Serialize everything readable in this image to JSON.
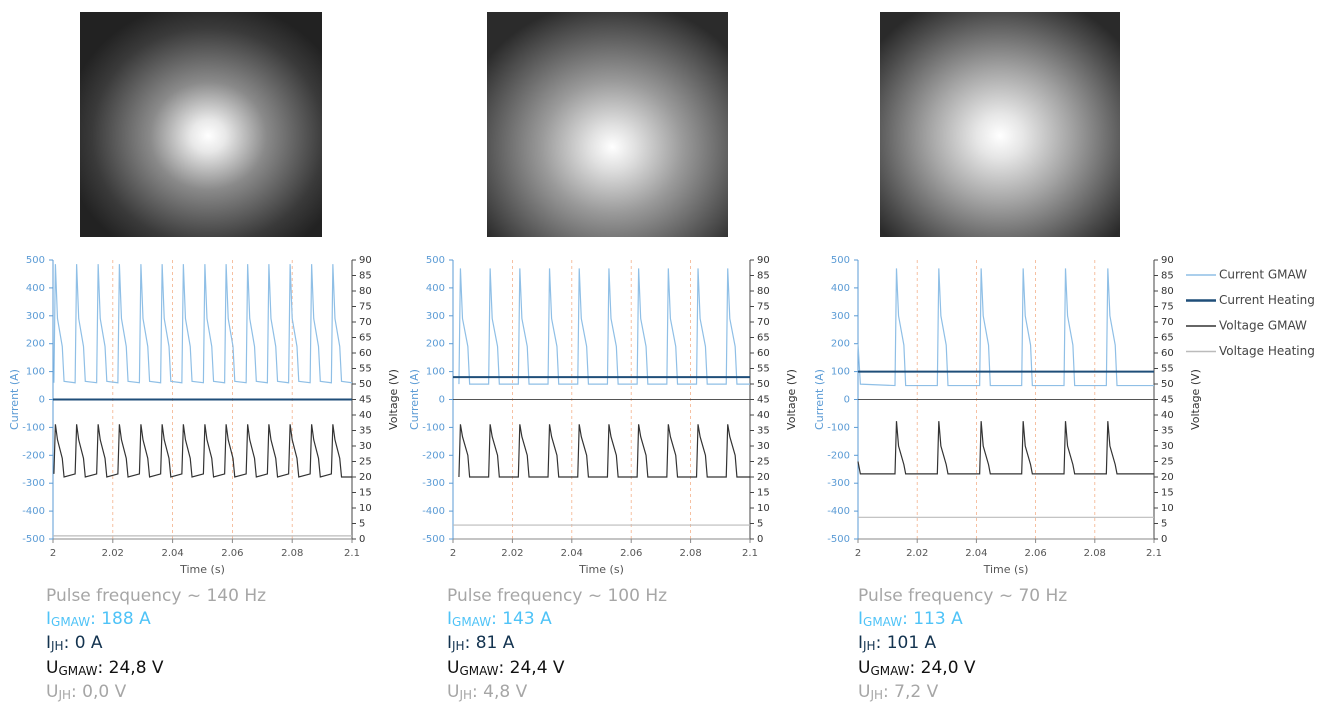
{
  "chart_data": [
    {
      "type": "line",
      "x": [
        2.0003,
        2.0008,
        2.0015,
        2.0031,
        2.0037,
        2.0074,
        2.0079,
        2.0086,
        2.0102,
        2.0108,
        2.0146,
        2.0151,
        2.0158,
        2.0174,
        2.018,
        2.0217,
        2.0222,
        2.0229,
        2.0245,
        2.0251,
        2.0289,
        2.0294,
        2.0301,
        2.0317,
        2.0323,
        2.036,
        2.0365,
        2.0372,
        2.0388,
        2.0394,
        2.0431,
        2.0436,
        2.0443,
        2.0459,
        2.0465,
        2.0503,
        2.0508,
        2.0515,
        2.0531,
        2.0537,
        2.0574,
        2.0579,
        2.0586,
        2.0602,
        2.0608,
        2.0646,
        2.0651,
        2.0658,
        2.0674,
        2.068,
        2.0717,
        2.0722,
        2.0729,
        2.0745,
        2.0751,
        2.0788,
        2.0793,
        2.08,
        2.0816,
        2.0822,
        2.086,
        2.0865,
        2.0872,
        2.0888,
        2.0894,
        2.0931,
        2.0936,
        2.0943,
        2.0959,
        2.0965,
        2.1
      ],
      "series": [
        {
          "color": "#8fbfe6",
          "values": [
            60,
            485,
            290,
            190,
            65,
            60,
            485,
            290,
            190,
            65,
            60,
            485,
            290,
            190,
            65,
            60,
            485,
            290,
            190,
            65,
            60,
            485,
            290,
            190,
            65,
            60,
            485,
            290,
            190,
            65,
            60,
            485,
            290,
            190,
            65,
            60,
            485,
            290,
            190,
            65,
            60,
            485,
            290,
            190,
            65,
            60,
            485,
            290,
            190,
            65,
            60,
            485,
            290,
            190,
            65,
            60,
            485,
            290,
            190,
            65,
            60,
            485,
            290,
            190,
            65,
            60,
            485,
            290,
            190,
            65,
            60
          ]
        },
        {
          "color": "#1f4e79",
          "x": [
            2,
            2.1
          ],
          "values": [
            0,
            0
          ]
        },
        {
          "color": "#333333",
          "axis": "y2",
          "values": [
            21,
            37,
            32,
            26,
            20,
            21,
            37,
            32,
            26,
            20,
            21,
            37,
            32,
            26,
            20,
            21,
            37,
            32,
            26,
            20,
            21,
            37,
            32,
            26,
            20,
            21,
            37,
            32,
            26,
            20,
            21,
            37,
            32,
            26,
            20,
            21,
            37,
            32,
            26,
            20,
            21,
            37,
            32,
            26,
            20,
            21,
            37,
            32,
            26,
            20,
            21,
            37,
            32,
            26,
            20,
            21,
            37,
            32,
            26,
            20,
            21,
            37,
            32,
            26,
            20,
            21,
            37,
            32,
            26,
            20,
            20
          ]
        },
        {
          "color": "#bbbbbb",
          "axis": "y2",
          "x": [
            2,
            2.1
          ],
          "values": [
            1,
            1
          ]
        }
      ],
      "xlabel": "Time (s)",
      "ylabel": "Current (A)",
      "y2label": "Voltage (V)",
      "xlim": [
        2,
        2.1
      ],
      "xticks": [
        2,
        2.02,
        2.04,
        2.06,
        2.08,
        2.1
      ],
      "ylim": [
        -500,
        500
      ],
      "yticks": [
        -500,
        -400,
        -300,
        -200,
        -100,
        0,
        100,
        200,
        300,
        400,
        500
      ],
      "y2lim": [
        0,
        90
      ],
      "y2ticks": [
        0,
        5,
        10,
        15,
        20,
        25,
        30,
        35,
        40,
        45,
        50,
        55,
        60,
        65,
        70,
        75,
        80,
        85,
        90
      ],
      "grid": "x",
      "annotations": [
        {
          "text": "Pulse frequency ~ 140 Hz",
          "color": "#a6a6a6"
        },
        {
          "symbol": "I",
          "subscript": "GMAW",
          "text": ": 188 A",
          "color": "#4fc3f7"
        },
        {
          "symbol": "I",
          "subscript": "JH",
          "text": ": 0 A",
          "color": "#13334f"
        },
        {
          "symbol": "U",
          "subscript": "GMAW",
          "text": ": 24,8 V",
          "color": "#111111"
        },
        {
          "symbol": "U",
          "subscript": "JH",
          "text": ": 0,0 V",
          "color": "#a6a6a6"
        }
      ]
    },
    {
      "type": "line",
      "x": [
        2.002,
        2.0025,
        2.0032,
        2.005,
        2.0056,
        2.012,
        2.0125,
        2.0132,
        2.015,
        2.0156,
        2.022,
        2.0225,
        2.0232,
        2.025,
        2.0256,
        2.032,
        2.0325,
        2.0332,
        2.035,
        2.0356,
        2.042,
        2.0425,
        2.0432,
        2.045,
        2.0456,
        2.052,
        2.0525,
        2.0532,
        2.055,
        2.0556,
        2.062,
        2.0625,
        2.0632,
        2.065,
        2.0656,
        2.072,
        2.0725,
        2.0732,
        2.075,
        2.0756,
        2.082,
        2.0825,
        2.0832,
        2.085,
        2.0856,
        2.092,
        2.0925,
        2.0932,
        2.095,
        2.0956,
        2.1
      ],
      "series": [
        {
          "color": "#8fbfe6",
          "values": [
            55,
            470,
            290,
            190,
            55,
            55,
            470,
            290,
            190,
            55,
            55,
            470,
            290,
            190,
            55,
            55,
            470,
            290,
            190,
            55,
            55,
            470,
            290,
            190,
            55,
            55,
            470,
            290,
            190,
            55,
            55,
            470,
            290,
            190,
            55,
            55,
            470,
            290,
            190,
            55,
            55,
            470,
            290,
            190,
            55,
            55,
            470,
            290,
            190,
            55,
            55
          ]
        },
        {
          "color": "#1f4e79",
          "x": [
            2,
            2.1
          ],
          "values": [
            80,
            80
          ]
        },
        {
          "color": "#333333",
          "axis": "y2",
          "values": [
            20,
            37,
            33,
            27,
            20,
            20,
            37,
            33,
            27,
            20,
            20,
            37,
            33,
            27,
            20,
            20,
            37,
            33,
            27,
            20,
            20,
            37,
            33,
            27,
            20,
            20,
            37,
            33,
            27,
            20,
            20,
            37,
            33,
            27,
            20,
            20,
            37,
            33,
            27,
            20,
            20,
            37,
            33,
            27,
            20,
            20,
            37,
            33,
            27,
            20,
            20
          ]
        },
        {
          "color": "#bbbbbb",
          "axis": "y2",
          "x": [
            2,
            2.1
          ],
          "values": [
            4.5,
            4.5
          ]
        }
      ],
      "xlabel": "Time (s)",
      "ylabel": "Current (A)",
      "y2label": "Voltage (V)",
      "xlim": [
        2,
        2.1
      ],
      "xticks": [
        2,
        2.02,
        2.04,
        2.06,
        2.08,
        2.1
      ],
      "ylim": [
        -500,
        500
      ],
      "yticks": [
        -500,
        -400,
        -300,
        -200,
        -100,
        0,
        100,
        200,
        300,
        400,
        500
      ],
      "y2lim": [
        0,
        90
      ],
      "y2ticks": [
        0,
        5,
        10,
        15,
        20,
        25,
        30,
        35,
        40,
        45,
        50,
        55,
        60,
        65,
        70,
        75,
        80,
        85,
        90
      ],
      "grid": "x",
      "annotations": [
        {
          "text": "Pulse frequency ~ 100 Hz",
          "color": "#a6a6a6"
        },
        {
          "symbol": "I",
          "subscript": "GMAW",
          "text": ": 143 A",
          "color": "#4fc3f7"
        },
        {
          "symbol": "I",
          "subscript": "JH",
          "text": ": 81 A",
          "color": "#13334f"
        },
        {
          "symbol": "U",
          "subscript": "GMAW",
          "text": ": 24,4 V",
          "color": "#111111"
        },
        {
          "symbol": "U",
          "subscript": "JH",
          "text": ": 4,8 V",
          "color": "#a6a6a6"
        }
      ]
    },
    {
      "type": "line",
      "x": [
        2,
        2.0008,
        2.0125,
        2.013,
        2.0137,
        2.0155,
        2.0161,
        2.0268,
        2.0273,
        2.028,
        2.0298,
        2.0304,
        2.0411,
        2.0416,
        2.0423,
        2.0441,
        2.0447,
        2.0553,
        2.0558,
        2.0565,
        2.0583,
        2.0589,
        2.0696,
        2.0701,
        2.0708,
        2.0726,
        2.0732,
        2.0839,
        2.0844,
        2.0851,
        2.0869,
        2.0875,
        2.1
      ],
      "series": [
        {
          "name": "Current GMAW",
          "color": "#8fbfe6",
          "values": [
            200,
            55,
            50,
            470,
            300,
            195,
            50,
            50,
            470,
            300,
            195,
            50,
            50,
            470,
            300,
            195,
            50,
            50,
            470,
            300,
            195,
            50,
            50,
            470,
            300,
            195,
            50,
            50,
            470,
            300,
            195,
            50,
            50
          ]
        },
        {
          "name": "Current Heating",
          "color": "#1f4e79",
          "x": [
            2,
            2.1
          ],
          "values": [
            100,
            100
          ]
        },
        {
          "name": "Voltage GMAW",
          "color": "#333333",
          "axis": "y2",
          "values": [
            25,
            21,
            21,
            38,
            30,
            24,
            21,
            21,
            38,
            30,
            24,
            21,
            21,
            38,
            30,
            24,
            21,
            21,
            38,
            30,
            24,
            21,
            21,
            38,
            30,
            24,
            21,
            21,
            38,
            30,
            24,
            21,
            21
          ]
        },
        {
          "name": "Voltage Heating",
          "color": "#bbbbbb",
          "axis": "y2",
          "x": [
            2,
            2.1
          ],
          "values": [
            7,
            7
          ]
        }
      ],
      "legend": "right",
      "xlabel": "Time (s)",
      "ylabel": "Current (A)",
      "y2label": "Voltage (V)",
      "xlim": [
        2,
        2.1
      ],
      "xticks": [
        2,
        2.02,
        2.04,
        2.06,
        2.08,
        2.1
      ],
      "ylim": [
        -500,
        500
      ],
      "yticks": [
        -500,
        -400,
        -300,
        -200,
        -100,
        0,
        100,
        200,
        300,
        400,
        500
      ],
      "y2lim": [
        0,
        90
      ],
      "y2ticks": [
        0,
        5,
        10,
        15,
        20,
        25,
        30,
        35,
        40,
        45,
        50,
        55,
        60,
        65,
        70,
        75,
        80,
        85,
        90
      ],
      "grid": "x",
      "annotations": [
        {
          "text": "Pulse frequency ~ 70 Hz",
          "color": "#a6a6a6"
        },
        {
          "symbol": "I",
          "subscript": "GMAW",
          "text": ": 113 A",
          "color": "#4fc3f7"
        },
        {
          "symbol": "I",
          "subscript": "JH",
          "text": ": 101 A",
          "color": "#13334f"
        },
        {
          "symbol": "U",
          "subscript": "GMAW",
          "text": ": 24,0 V",
          "color": "#111111"
        },
        {
          "symbol": "U",
          "subscript": "JH",
          "text": ": 7,2 V",
          "color": "#a6a6a6"
        }
      ]
    }
  ]
}
